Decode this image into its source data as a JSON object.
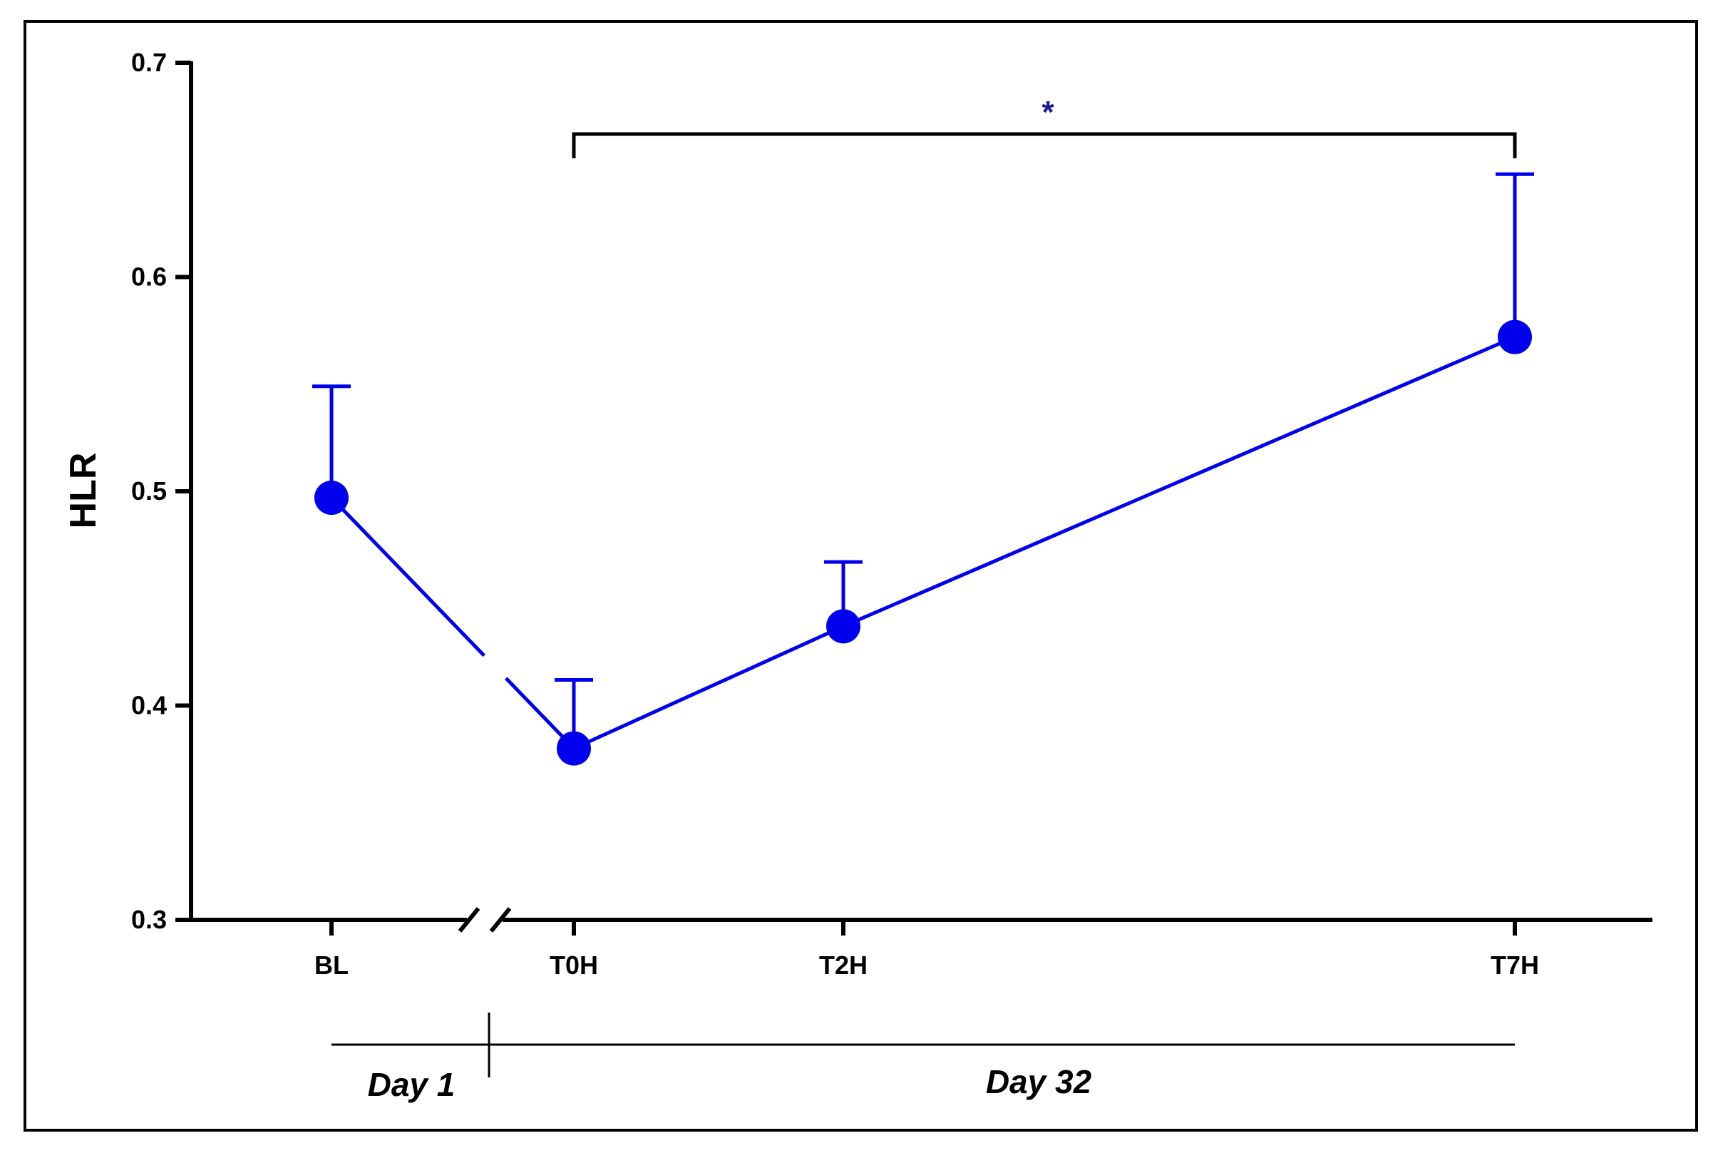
{
  "chart_data": {
    "type": "line",
    "ylabel": "HLR",
    "xlabel": "",
    "ylim": [
      0.3,
      0.7
    ],
    "yticks": [
      "0.3",
      "0.4",
      "0.5",
      "0.6",
      "0.7"
    ],
    "categories": [
      "BL",
      "T0H",
      "T2H",
      "T7H"
    ],
    "series": [
      {
        "values": [
          0.497,
          0.38,
          0.437,
          0.572
        ],
        "error_upper": [
          0.549,
          0.412,
          0.467,
          0.648
        ],
        "color": "#0000ee"
      }
    ],
    "axis_break": "between BL and T0H",
    "significance": {
      "from": "T0H",
      "to": "T7H",
      "label": "*",
      "color": "#1a1a99"
    },
    "periods": [
      {
        "label": "Day 1",
        "categories": [
          "BL"
        ]
      },
      {
        "label": "Day 32",
        "categories": [
          "T0H",
          "T2H",
          "T7H"
        ]
      }
    ],
    "grid": false,
    "legend": "none"
  }
}
